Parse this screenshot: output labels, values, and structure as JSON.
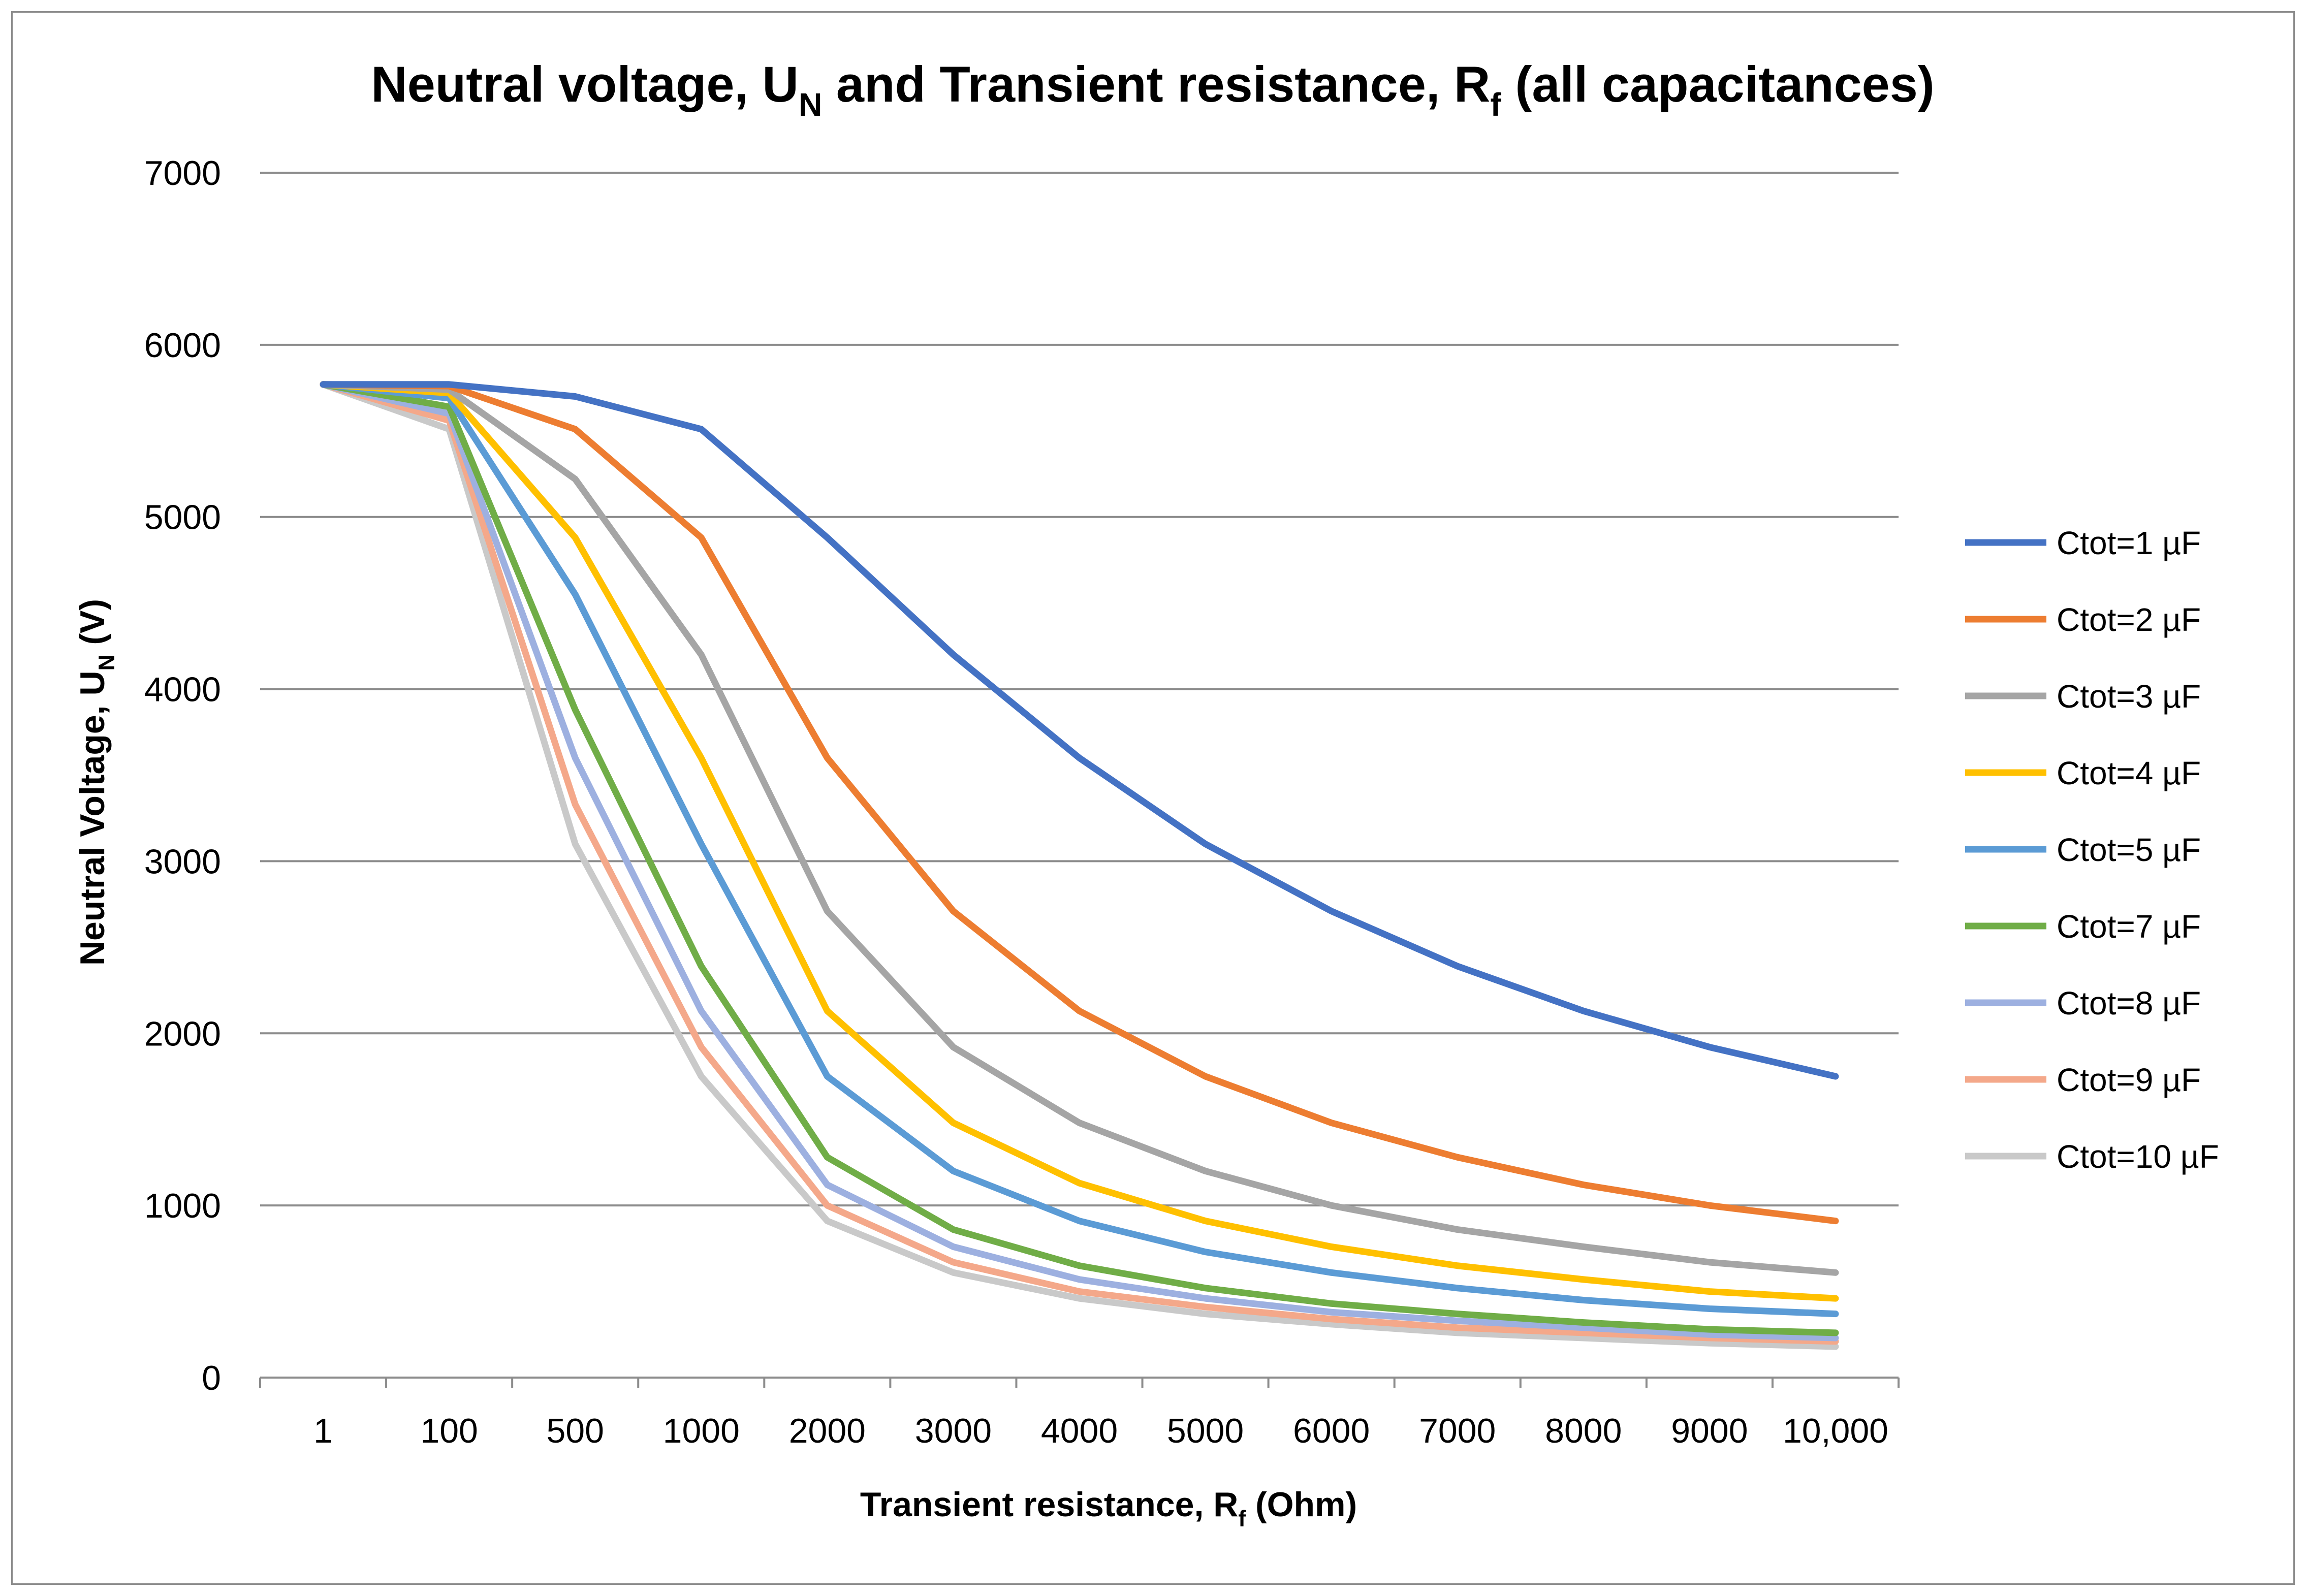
{
  "chart_data": {
    "type": "line",
    "title": {
      "prefix": "Neutral voltage, U",
      "prefix_sub": "N",
      "middle": " and Transient resistance, R",
      "middle_sub": "f",
      "suffix": " (all capacitances)"
    },
    "xlabel": {
      "main": "Transient resistance, R",
      "sub": "f",
      "suffix": " (Ohm)"
    },
    "ylabel": {
      "main": "Neutral Voltage, U",
      "sub": "N",
      "suffix": " (V)"
    },
    "categories": [
      "1",
      "100",
      "500",
      "1000",
      "2000",
      "3000",
      "4000",
      "5000",
      "6000",
      "7000",
      "8000",
      "9000",
      "10,000"
    ],
    "ylim": [
      0,
      7000
    ],
    "yticks": [
      0,
      1000,
      2000,
      3000,
      4000,
      5000,
      6000,
      7000
    ],
    "grid": "horizontal",
    "legend_position": "right",
    "series": [
      {
        "name": "Ctot=1 µF",
        "color": "#4472C4",
        "values": [
          5770,
          5770,
          5700,
          5510,
          4880,
          4200,
          3600,
          3100,
          2710,
          2390,
          2130,
          1920,
          1750
        ]
      },
      {
        "name": "Ctot=2 µF",
        "color": "#ED7D31",
        "values": [
          5770,
          5760,
          5510,
          4880,
          3600,
          2710,
          2130,
          1750,
          1480,
          1280,
          1120,
          1000,
          910
        ]
      },
      {
        "name": "Ctot=3 µF",
        "color": "#A5A5A5",
        "values": [
          5770,
          5740,
          5220,
          4200,
          2710,
          1920,
          1480,
          1200,
          1000,
          860,
          760,
          670,
          610
        ]
      },
      {
        "name": "Ctot=4 µF",
        "color": "#FFC000",
        "values": [
          5770,
          5720,
          4880,
          3600,
          2130,
          1480,
          1130,
          910,
          760,
          650,
          570,
          500,
          460
        ]
      },
      {
        "name": "Ctot=5 µF",
        "color": "#5B9BD5",
        "values": [
          5770,
          5690,
          4550,
          3100,
          1750,
          1200,
          910,
          730,
          610,
          520,
          450,
          400,
          370
        ]
      },
      {
        "name": "Ctot=7 µF",
        "color": "#70AD47",
        "values": [
          5770,
          5640,
          3880,
          2390,
          1280,
          860,
          650,
          520,
          430,
          370,
          320,
          280,
          260
        ]
      },
      {
        "name": "Ctot=8 µF",
        "color": "#9DB0E0",
        "values": [
          5770,
          5600,
          3600,
          2130,
          1120,
          760,
          570,
          460,
          380,
          330,
          290,
          250,
          230
        ]
      },
      {
        "name": "Ctot=9 µF",
        "color": "#F4A88A",
        "values": [
          5770,
          5560,
          3330,
          1920,
          1000,
          670,
          500,
          410,
          340,
          290,
          260,
          230,
          210
        ]
      },
      {
        "name": "Ctot=10 µF",
        "color": "#C9C9C9",
        "values": [
          5770,
          5510,
          3100,
          1750,
          910,
          610,
          460,
          370,
          310,
          260,
          230,
          200,
          180
        ]
      }
    ]
  }
}
